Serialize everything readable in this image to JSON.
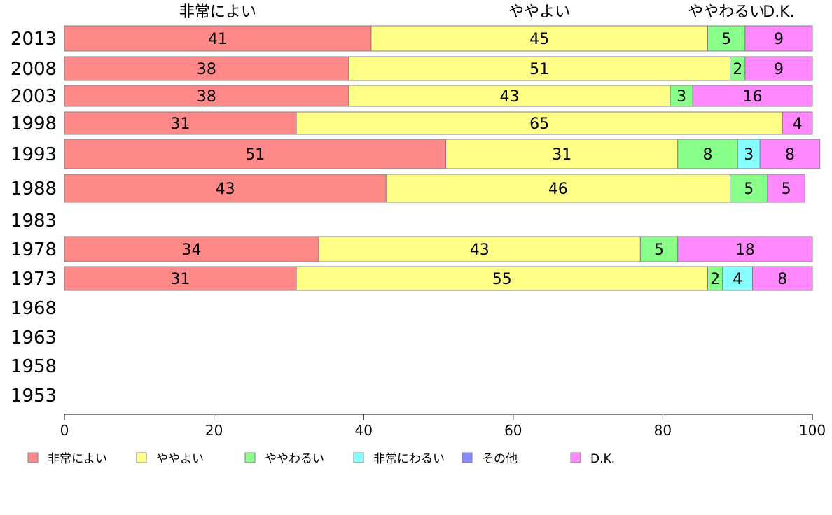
{
  "chart_data": {
    "type": "bar",
    "orientation": "horizontal",
    "stacked": true,
    "categories": [
      "2013",
      "2008",
      "2003",
      "1998",
      "1993",
      "1988",
      "1983",
      "1978",
      "1973",
      "1968",
      "1963",
      "1958",
      "1953"
    ],
    "series": [
      {
        "name": "非常によい",
        "color": "#ff8888",
        "values": [
          41,
          38,
          38,
          31,
          51,
          43,
          null,
          34,
          31,
          null,
          null,
          null,
          null
        ]
      },
      {
        "name": "ややよい",
        "color": "#ffff88",
        "values": [
          45,
          51,
          43,
          65,
          31,
          46,
          null,
          43,
          55,
          null,
          null,
          null,
          null
        ]
      },
      {
        "name": "ややわるい",
        "color": "#88ff88",
        "values": [
          5,
          2,
          3,
          0,
          8,
          5,
          null,
          5,
          2,
          null,
          null,
          null,
          null
        ]
      },
      {
        "name": "非常にわるい",
        "color": "#88ffff",
        "values": [
          0,
          0,
          0,
          0,
          3,
          0,
          null,
          0,
          4,
          null,
          null,
          null,
          null
        ]
      },
      {
        "name": "その他",
        "color": "#8888ff",
        "values": [
          0,
          0,
          0,
          0,
          0,
          0,
          null,
          0,
          0,
          null,
          null,
          null,
          null
        ]
      },
      {
        "name": "D.K.",
        "color": "#ff88ff",
        "values": [
          9,
          9,
          16,
          4,
          8,
          5,
          null,
          18,
          8,
          null,
          null,
          null,
          null
        ]
      }
    ],
    "top_labels": [
      "非常によい",
      "ややよい",
      "ややわるい",
      "非常にわるい",
      "その他",
      "D.K."
    ],
    "xlim": [
      0,
      100
    ],
    "xticks": [
      0,
      20,
      40,
      60,
      80,
      100
    ],
    "legend_position": "bottom",
    "grid": false
  }
}
